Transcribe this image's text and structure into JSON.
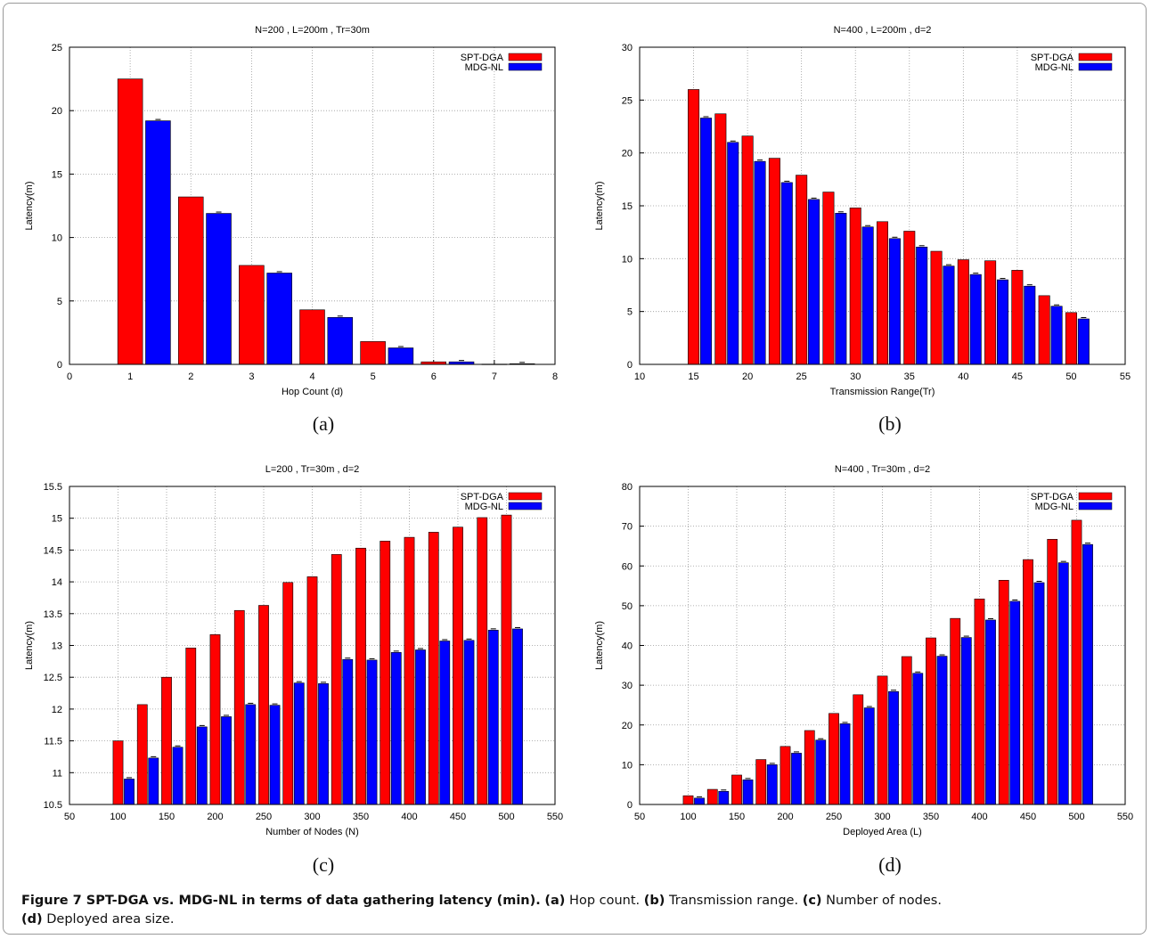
{
  "colors": {
    "spt": "#ff0000",
    "mdg": "#0000ff",
    "grid": "#9a9a9a"
  },
  "chart_data": [
    {
      "type": "bar",
      "panel_label": "(a)",
      "title": "N=200 , L=200m , Tr=30m",
      "xlabel": "Hop Count (d)",
      "ylabel": "Latency(m)",
      "xlim": [
        0,
        8
      ],
      "ylim": [
        0,
        25
      ],
      "xticks": [
        "0",
        "1",
        "2",
        "3",
        "4",
        "5",
        "6",
        "7",
        "8"
      ],
      "yticks": [
        "0",
        "5",
        "10",
        "15",
        "20",
        "25"
      ],
      "legend_position": "top-right",
      "x": [
        1,
        2,
        3,
        4,
        5,
        6,
        7
      ],
      "series": [
        {
          "name": "SPT-DGA",
          "values": [
            22.5,
            13.2,
            7.8,
            4.3,
            1.8,
            0.2,
            0.02
          ]
        },
        {
          "name": "MDG-NL",
          "values": [
            19.2,
            11.9,
            7.2,
            3.7,
            1.3,
            0.2,
            0.05
          ]
        }
      ]
    },
    {
      "type": "bar",
      "panel_label": "(b)",
      "title": "N=400 , L=200m , d=2",
      "xlabel": "Transmission Range(Tr)",
      "ylabel": "Latency(m)",
      "xlim": [
        10,
        55
      ],
      "ylim": [
        0,
        30
      ],
      "xticks": [
        "10",
        "15",
        "20",
        "25",
        "30",
        "35",
        "40",
        "45",
        "50",
        "55"
      ],
      "yticks": [
        "0",
        "5",
        "10",
        "15",
        "20",
        "25",
        "30"
      ],
      "legend_position": "top-right",
      "x": [
        15,
        17.5,
        20,
        22.5,
        25,
        27.5,
        30,
        32.5,
        35,
        37.5,
        40,
        42.5,
        45,
        47.5,
        50
      ],
      "series": [
        {
          "name": "SPT-DGA",
          "values": [
            26.0,
            23.7,
            21.6,
            19.5,
            17.9,
            16.3,
            14.8,
            13.5,
            12.6,
            10.7,
            9.9,
            9.8,
            8.9,
            6.5,
            4.9
          ]
        },
        {
          "name": "MDG-NL",
          "values": [
            23.3,
            21.0,
            19.2,
            17.2,
            15.6,
            14.3,
            13.0,
            11.9,
            11.1,
            9.3,
            8.5,
            8.0,
            7.4,
            5.5,
            4.3
          ]
        }
      ]
    },
    {
      "type": "bar",
      "panel_label": "(c)",
      "title": "L=200 , Tr=30m , d=2",
      "xlabel": "Number of Nodes (N)",
      "ylabel": "Latency(m)",
      "xlim": [
        50,
        550
      ],
      "ylim": [
        10.5,
        15.5
      ],
      "xticks": [
        "50",
        "100",
        "150",
        "200",
        "250",
        "300",
        "350",
        "400",
        "450",
        "500",
        "550"
      ],
      "yticks": [
        "10.5",
        "11",
        "11.5",
        "12",
        "12.5",
        "13",
        "13.5",
        "14",
        "14.5",
        "15",
        "15.5"
      ],
      "legend_position": "top-right",
      "x": [
        100,
        125,
        150,
        175,
        200,
        225,
        250,
        275,
        300,
        325,
        350,
        375,
        400,
        425,
        450,
        475,
        500
      ],
      "series": [
        {
          "name": "SPT-DGA",
          "values": [
            11.5,
            12.07,
            12.5,
            12.96,
            13.17,
            13.55,
            13.63,
            13.99,
            14.08,
            14.43,
            14.53,
            14.64,
            14.7,
            14.78,
            14.86,
            15.01,
            15.05
          ]
        },
        {
          "name": "MDG-NL",
          "values": [
            10.9,
            11.23,
            11.4,
            11.72,
            11.88,
            12.07,
            12.06,
            12.41,
            12.4,
            12.78,
            12.77,
            12.89,
            12.93,
            13.07,
            13.08,
            13.24,
            13.26
          ]
        }
      ]
    },
    {
      "type": "bar",
      "panel_label": "(d)",
      "title": "N=400 , Tr=30m , d=2",
      "xlabel": "Deployed Area (L)",
      "ylabel": "Latency(m)",
      "xlim": [
        50,
        550
      ],
      "ylim": [
        0,
        80
      ],
      "xticks": [
        "50",
        "100",
        "150",
        "200",
        "250",
        "300",
        "350",
        "400",
        "450",
        "500",
        "550"
      ],
      "yticks": [
        "0",
        "10",
        "20",
        "30",
        "40",
        "50",
        "60",
        "70",
        "80"
      ],
      "legend_position": "top-right",
      "x": [
        100,
        125,
        150,
        175,
        200,
        225,
        250,
        275,
        300,
        325,
        350,
        375,
        400,
        425,
        450,
        475,
        500
      ],
      "series": [
        {
          "name": "SPT-DGA",
          "values": [
            2.2,
            3.8,
            7.4,
            11.3,
            14.6,
            18.6,
            22.9,
            27.6,
            32.3,
            37.2,
            41.9,
            46.8,
            51.7,
            56.4,
            61.6,
            66.7,
            71.5
          ]
        },
        {
          "name": "MDG-NL",
          "values": [
            1.6,
            3.3,
            6.2,
            10.0,
            12.9,
            16.2,
            20.3,
            24.3,
            28.4,
            33.0,
            37.3,
            42.0,
            46.4,
            51.1,
            55.8,
            60.8,
            65.4
          ]
        }
      ]
    }
  ],
  "caption": {
    "title": "Figure 7 SPT-DGA vs. MDG-NL in terms of data gathering latency (min).",
    "a_tag": "(a)",
    "a_text": " Hop count. ",
    "b_tag": "(b)",
    "b_text": " Transmission range. ",
    "c_tag": "(c)",
    "c_text": " Number of nodes.",
    "d_tag": "(d)",
    "d_text": " Deployed area size."
  }
}
